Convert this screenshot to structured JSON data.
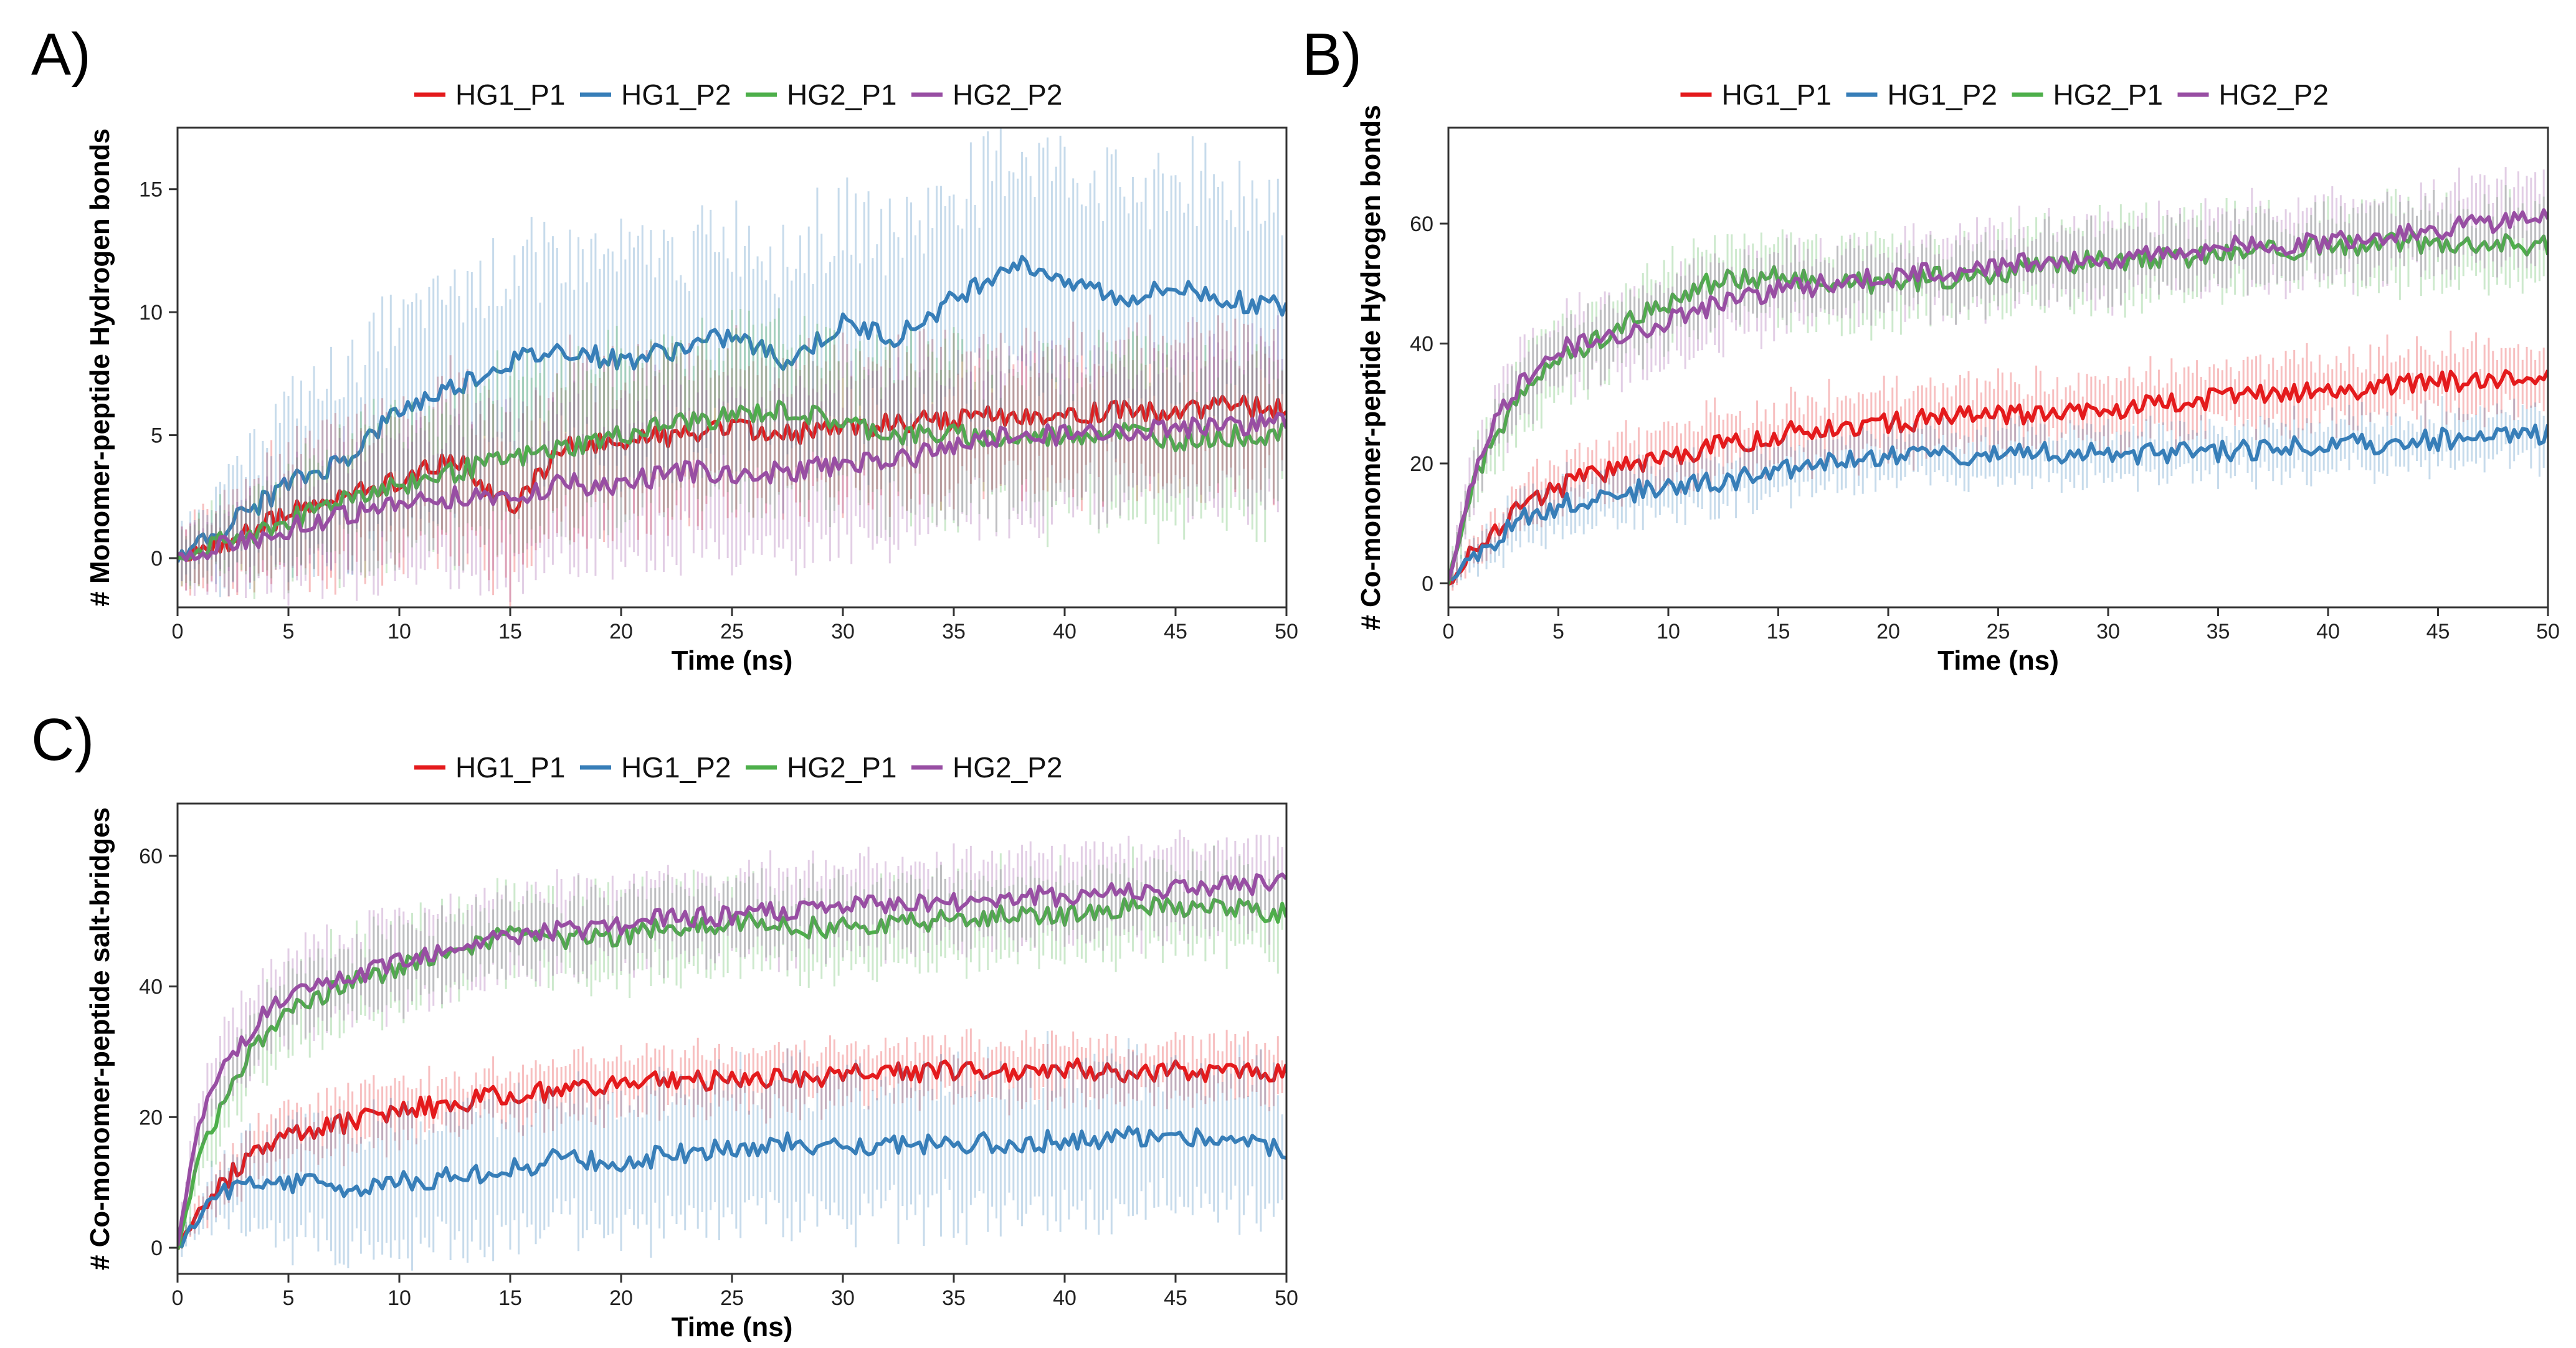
{
  "figure": {
    "panel_labels": [
      "A)",
      "B)",
      "C)"
    ]
  },
  "chart_data": [
    {
      "type": "line",
      "panel": "A)",
      "title": "",
      "xlabel": "Time (ns)",
      "ylabel": "# Monomer-peptide Hydrogen bonds",
      "xlim": [
        0,
        50
      ],
      "ylim": [
        -2,
        17.5
      ],
      "xticks": [
        0,
        5,
        10,
        15,
        20,
        25,
        30,
        35,
        40,
        45,
        50
      ],
      "yticks": [
        0,
        5,
        10,
        15
      ],
      "legend": "top",
      "error_bars": true,
      "x": [
        0,
        2.5,
        5,
        7.5,
        10,
        12.5,
        15,
        17.5,
        20,
        22.5,
        25,
        27.5,
        30,
        32.5,
        35,
        37.5,
        40,
        42.5,
        45,
        47.5,
        50
      ],
      "series": [
        {
          "name": "HG1_P1",
          "color": "#e41a1c",
          "values": [
            0,
            0.8,
            1.8,
            2.5,
            3.2,
            4.0,
            2.0,
            4.5,
            4.8,
            5.0,
            5.2,
            5.0,
            5.3,
            5.5,
            5.6,
            5.8,
            5.7,
            6.0,
            5.9,
            6.2,
            6.0
          ],
          "error": [
            1.0,
            1.5,
            2.5,
            2.8,
            3.0,
            3.0,
            3.2,
            3.0,
            3.0,
            2.8,
            2.8,
            2.8,
            2.8,
            2.6,
            2.6,
            2.6,
            2.6,
            2.6,
            2.6,
            2.6,
            2.6
          ]
        },
        {
          "name": "HG1_P2",
          "color": "#377eb8",
          "values": [
            0,
            1.5,
            3.0,
            4.0,
            6.0,
            7.0,
            8.0,
            8.5,
            8.0,
            8.5,
            9.0,
            8.0,
            9.5,
            9.0,
            10.5,
            12.0,
            11.5,
            10.5,
            11.0,
            10.5,
            10.2
          ],
          "error": [
            1.0,
            2.0,
            3.0,
            3.5,
            3.5,
            3.8,
            3.8,
            4.0,
            4.0,
            4.0,
            4.2,
            4.2,
            4.3,
            4.3,
            4.3,
            4.5,
            4.5,
            4.5,
            4.5,
            4.5,
            4.5
          ]
        },
        {
          "name": "HG2_P1",
          "color": "#4daf4a",
          "values": [
            0,
            0.8,
            1.5,
            2.5,
            3.0,
            3.5,
            4.0,
            4.5,
            5.0,
            5.5,
            5.8,
            6.0,
            5.5,
            5.0,
            5.0,
            4.8,
            5.0,
            5.2,
            4.8,
            5.0,
            5.0
          ],
          "error": [
            1.0,
            1.5,
            2.0,
            2.5,
            2.8,
            3.0,
            3.0,
            3.0,
            3.0,
            3.0,
            3.0,
            3.0,
            3.0,
            3.0,
            3.0,
            3.0,
            3.0,
            3.0,
            3.0,
            3.0,
            3.0
          ]
        },
        {
          "name": "HG2_P2",
          "color": "#984ea3",
          "values": [
            0,
            0.6,
            1.2,
            1.8,
            2.2,
            2.5,
            2.5,
            3.0,
            3.0,
            3.5,
            3.5,
            3.5,
            3.8,
            4.0,
            4.5,
            5.0,
            5.0,
            5.2,
            5.3,
            5.4,
            5.5
          ],
          "error": [
            1.0,
            1.5,
            2.0,
            2.5,
            3.0,
            3.0,
            3.0,
            3.0,
            3.0,
            3.0,
            3.0,
            3.0,
            3.0,
            3.0,
            3.0,
            3.0,
            3.0,
            3.0,
            3.0,
            3.0,
            3.0
          ]
        }
      ]
    },
    {
      "type": "line",
      "panel": "B)",
      "title": "",
      "xlabel": "Time (ns)",
      "ylabel": "# Co-monomer-peptide Hydrogen bonds",
      "xlim": [
        0,
        50
      ],
      "ylim": [
        -4,
        76
      ],
      "xticks": [
        0,
        5,
        10,
        15,
        20,
        25,
        30,
        35,
        40,
        45,
        50
      ],
      "yticks": [
        0,
        20,
        40,
        60
      ],
      "legend": "top",
      "error_bars": true,
      "x": [
        0,
        1,
        2,
        3,
        4,
        5,
        7.5,
        10,
        12.5,
        15,
        17.5,
        20,
        22.5,
        25,
        27.5,
        30,
        32.5,
        35,
        37.5,
        40,
        42.5,
        45,
        47.5,
        50
      ],
      "series": [
        {
          "name": "HG1_P1",
          "color": "#e41a1c",
          "values": [
            0,
            5,
            9,
            12,
            14,
            16,
            19,
            21,
            23,
            25,
            26,
            27,
            27.5,
            28,
            28.5,
            29,
            30,
            31,
            31.5,
            32,
            33,
            33.5,
            34,
            35
          ],
          "error": [
            1,
            2,
            3,
            3.5,
            4,
            4,
            4.5,
            4.5,
            5,
            5,
            5,
            5,
            5,
            5,
            5,
            5,
            5,
            5,
            5,
            5,
            5,
            5,
            5,
            5
          ]
        },
        {
          "name": "HG1_P2",
          "color": "#377eb8",
          "values": [
            0,
            4,
            7,
            10,
            11.5,
            13,
            15,
            16,
            17,
            18.5,
            20,
            21,
            21,
            21.5,
            22,
            21.5,
            21.5,
            22,
            22.5,
            23,
            23.5,
            24,
            24.5,
            25
          ],
          "error": [
            1,
            2,
            3,
            3.5,
            4,
            4,
            4,
            4,
            4,
            4,
            4,
            4,
            4,
            4,
            4,
            4,
            4,
            4,
            4,
            4,
            4,
            4,
            4,
            4
          ]
        },
        {
          "name": "HG2_P1",
          "color": "#4daf4a",
          "values": [
            0,
            15,
            24,
            30,
            34,
            37,
            42,
            47,
            51,
            51,
            50,
            50,
            51,
            52,
            53,
            54,
            54,
            55,
            55.5,
            56,
            56.5,
            57,
            57,
            56
          ],
          "error": [
            2,
            4,
            5,
            5.5,
            6,
            6,
            6,
            6,
            6,
            6,
            6,
            6,
            6,
            6,
            6,
            6,
            6,
            6,
            6,
            6,
            6,
            6,
            6,
            6
          ]
        },
        {
          "name": "HG2_P2",
          "color": "#984ea3",
          "values": [
            0,
            16,
            26,
            32,
            36,
            39,
            41,
            44,
            47,
            49,
            50,
            51,
            52,
            53,
            54,
            54,
            55,
            56,
            56.5,
            57,
            58,
            59,
            60,
            61
          ],
          "error": [
            2,
            4,
            5,
            5.5,
            6,
            6,
            6,
            6,
            6,
            6,
            6,
            6,
            6,
            6,
            6,
            6,
            6,
            6,
            6,
            6,
            6,
            6,
            6,
            6
          ]
        }
      ]
    },
    {
      "type": "line",
      "panel": "C)",
      "title": "",
      "xlabel": "Time (ns)",
      "ylabel": "# Co-monomer-peptide salt-bridges",
      "xlim": [
        0,
        50
      ],
      "ylim": [
        -4,
        68
      ],
      "xticks": [
        0,
        5,
        10,
        15,
        20,
        25,
        30,
        35,
        40,
        45,
        50
      ],
      "yticks": [
        0,
        20,
        40,
        60
      ],
      "legend": "top",
      "error_bars": true,
      "x": [
        0,
        1,
        2,
        3,
        4,
        5,
        7.5,
        10,
        12.5,
        15,
        17.5,
        20,
        22.5,
        25,
        27.5,
        30,
        32.5,
        35,
        37.5,
        40,
        42.5,
        45,
        47.5,
        50
      ],
      "series": [
        {
          "name": "HG1_P1",
          "color": "#e41a1c",
          "values": [
            0,
            6,
            10,
            13,
            15,
            17,
            19,
            21,
            22,
            23.5,
            24,
            25,
            25.5,
            25.5,
            26,
            26.5,
            27,
            27,
            27,
            27.5,
            27,
            27,
            27,
            27
          ],
          "error": [
            1,
            2,
            3,
            3.5,
            4,
            4,
            4,
            4,
            4,
            4,
            4,
            4,
            4,
            4,
            4,
            4,
            4,
            4,
            4,
            4,
            4,
            4,
            4,
            4
          ]
        },
        {
          "name": "HG1_P2",
          "color": "#377eb8",
          "values": [
            0,
            5,
            8,
            9.5,
            10,
            10,
            9,
            10,
            11,
            12,
            14,
            13,
            14.5,
            15,
            16,
            15,
            15.5,
            16,
            16,
            16.5,
            17,
            17,
            16.5,
            15
          ],
          "error": [
            1,
            3,
            5,
            6,
            7,
            8,
            9,
            9,
            9.5,
            10,
            10,
            10,
            10,
            10.5,
            10.5,
            10.5,
            10.5,
            10.5,
            11,
            11,
            11,
            11,
            11,
            10
          ]
        },
        {
          "name": "HG2_P1",
          "color": "#4daf4a",
          "values": [
            0,
            14,
            22,
            28,
            33,
            36,
            40,
            43,
            46,
            48,
            47,
            48,
            49,
            50,
            49,
            49,
            50,
            50,
            51,
            51,
            52,
            52,
            52,
            51
          ],
          "error": [
            2,
            4,
            5,
            5.5,
            6,
            6,
            6,
            6,
            6,
            6,
            6,
            6,
            6,
            6,
            6,
            6,
            6,
            6,
            6,
            6,
            6,
            6,
            6,
            6
          ]
        },
        {
          "name": "HG2_P2",
          "color": "#984ea3",
          "values": [
            0,
            20,
            27,
            32,
            36,
            38,
            41,
            44,
            46,
            47.5,
            48.5,
            49.5,
            50.5,
            51,
            51.5,
            52,
            52.5,
            53,
            53.5,
            54,
            54.5,
            55,
            55.5,
            56
          ],
          "error": [
            2,
            4,
            5,
            5.5,
            6,
            6,
            6,
            6,
            6,
            6,
            6,
            6,
            6,
            6,
            6,
            6,
            6,
            6,
            6,
            6,
            6,
            6,
            6,
            6
          ]
        }
      ]
    }
  ]
}
